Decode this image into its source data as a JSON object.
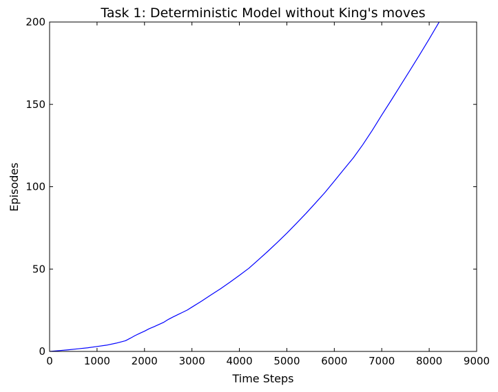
{
  "chart_data": {
    "type": "line",
    "title": "Task 1: Deterministic Model without King's moves",
    "xlabel": "Time Steps",
    "ylabel": "Episodes",
    "xlim": [
      0,
      9000
    ],
    "ylim": [
      0,
      200
    ],
    "xticks": [
      0,
      1000,
      2000,
      3000,
      4000,
      5000,
      6000,
      7000,
      8000,
      9000
    ],
    "yticks": [
      0,
      50,
      100,
      150,
      200
    ],
    "grid": false,
    "series": [
      {
        "name": "episodes",
        "color": "#0000ff",
        "x": [
          0,
          200,
          400,
          600,
          800,
          1000,
          1200,
          1400,
          1600,
          1700,
          1800,
          1900,
          2000,
          2100,
          2200,
          2300,
          2400,
          2500,
          2600,
          2700,
          2800,
          2900,
          3000,
          3200,
          3400,
          3600,
          3800,
          4000,
          4200,
          4400,
          4600,
          4800,
          5000,
          5200,
          5400,
          5600,
          5800,
          6000,
          6200,
          6400,
          6600,
          6800,
          7000,
          7200,
          7400,
          7600,
          7800,
          8000,
          8200,
          8400,
          8450
        ],
        "y": [
          0,
          0.5,
          1,
          1.6,
          2.2,
          3,
          3.8,
          5,
          6.5,
          8,
          9.6,
          11,
          12.3,
          13.8,
          15,
          16.3,
          17.6,
          19.4,
          20.9,
          22.3,
          23.7,
          25.1,
          26.9,
          30.5,
          34.3,
          38,
          42,
          46.2,
          50.5,
          55.6,
          60.8,
          66.2,
          71.8,
          77.7,
          83.7,
          90,
          96.4,
          103.4,
          110.5,
          117.5,
          125.5,
          134.2,
          143.5,
          152.5,
          161.7,
          170.9,
          180.2,
          189.7,
          199.5,
          209.5,
          212
        ]
      }
    ]
  }
}
